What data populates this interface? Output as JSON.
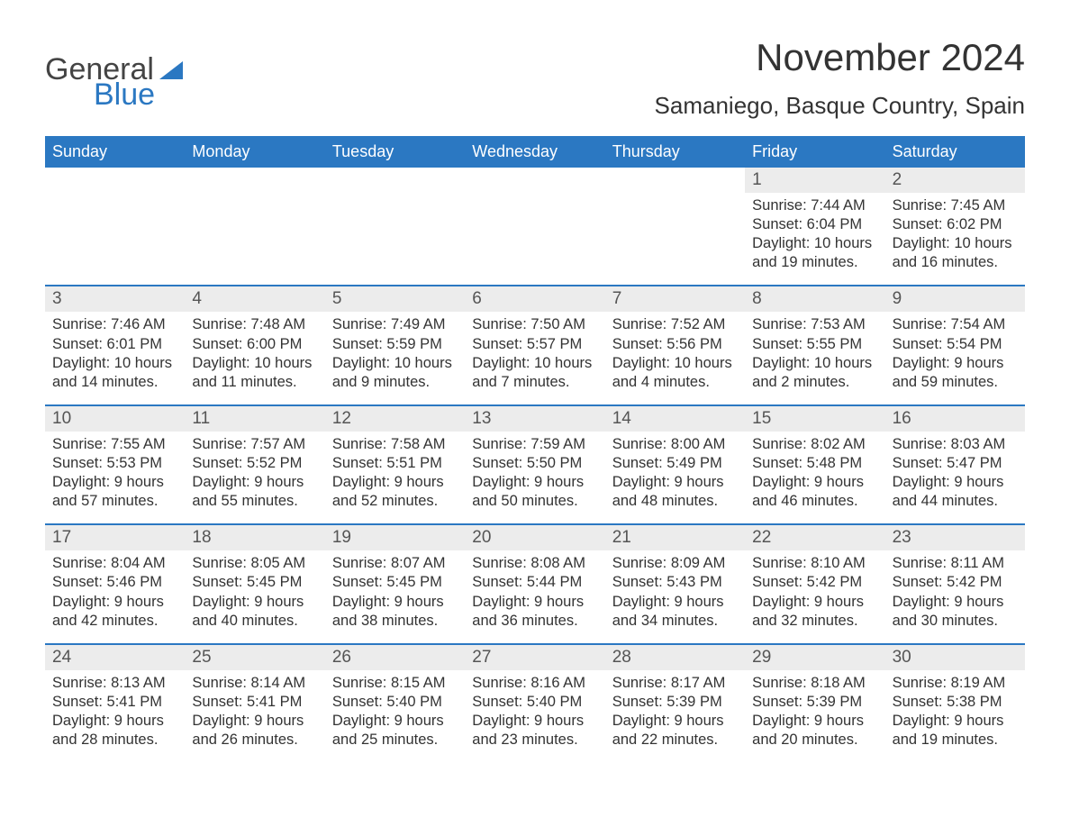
{
  "logo": {
    "word1": "General",
    "word2": "Blue"
  },
  "title": "November 2024",
  "location": "Samaniego, Basque Country, Spain",
  "colors": {
    "header_bg": "#2b78c2",
    "header_text": "#ffffff",
    "daybar_bg": "#ececec",
    "week_border": "#2b78c2",
    "body_text": "#333333",
    "page_bg": "#ffffff"
  },
  "day_labels": [
    "Sunday",
    "Monday",
    "Tuesday",
    "Wednesday",
    "Thursday",
    "Friday",
    "Saturday"
  ],
  "weeks": [
    [
      {
        "empty": true
      },
      {
        "empty": true
      },
      {
        "empty": true
      },
      {
        "empty": true
      },
      {
        "empty": true
      },
      {
        "num": "1",
        "sunrise": "Sunrise: 7:44 AM",
        "sunset": "Sunset: 6:04 PM",
        "day1": "Daylight: 10 hours",
        "day2": "and 19 minutes."
      },
      {
        "num": "2",
        "sunrise": "Sunrise: 7:45 AM",
        "sunset": "Sunset: 6:02 PM",
        "day1": "Daylight: 10 hours",
        "day2": "and 16 minutes."
      }
    ],
    [
      {
        "num": "3",
        "sunrise": "Sunrise: 7:46 AM",
        "sunset": "Sunset: 6:01 PM",
        "day1": "Daylight: 10 hours",
        "day2": "and 14 minutes."
      },
      {
        "num": "4",
        "sunrise": "Sunrise: 7:48 AM",
        "sunset": "Sunset: 6:00 PM",
        "day1": "Daylight: 10 hours",
        "day2": "and 11 minutes."
      },
      {
        "num": "5",
        "sunrise": "Sunrise: 7:49 AM",
        "sunset": "Sunset: 5:59 PM",
        "day1": "Daylight: 10 hours",
        "day2": "and 9 minutes."
      },
      {
        "num": "6",
        "sunrise": "Sunrise: 7:50 AM",
        "sunset": "Sunset: 5:57 PM",
        "day1": "Daylight: 10 hours",
        "day2": "and 7 minutes."
      },
      {
        "num": "7",
        "sunrise": "Sunrise: 7:52 AM",
        "sunset": "Sunset: 5:56 PM",
        "day1": "Daylight: 10 hours",
        "day2": "and 4 minutes."
      },
      {
        "num": "8",
        "sunrise": "Sunrise: 7:53 AM",
        "sunset": "Sunset: 5:55 PM",
        "day1": "Daylight: 10 hours",
        "day2": "and 2 minutes."
      },
      {
        "num": "9",
        "sunrise": "Sunrise: 7:54 AM",
        "sunset": "Sunset: 5:54 PM",
        "day1": "Daylight: 9 hours",
        "day2": "and 59 minutes."
      }
    ],
    [
      {
        "num": "10",
        "sunrise": "Sunrise: 7:55 AM",
        "sunset": "Sunset: 5:53 PM",
        "day1": "Daylight: 9 hours",
        "day2": "and 57 minutes."
      },
      {
        "num": "11",
        "sunrise": "Sunrise: 7:57 AM",
        "sunset": "Sunset: 5:52 PM",
        "day1": "Daylight: 9 hours",
        "day2": "and 55 minutes."
      },
      {
        "num": "12",
        "sunrise": "Sunrise: 7:58 AM",
        "sunset": "Sunset: 5:51 PM",
        "day1": "Daylight: 9 hours",
        "day2": "and 52 minutes."
      },
      {
        "num": "13",
        "sunrise": "Sunrise: 7:59 AM",
        "sunset": "Sunset: 5:50 PM",
        "day1": "Daylight: 9 hours",
        "day2": "and 50 minutes."
      },
      {
        "num": "14",
        "sunrise": "Sunrise: 8:00 AM",
        "sunset": "Sunset: 5:49 PM",
        "day1": "Daylight: 9 hours",
        "day2": "and 48 minutes."
      },
      {
        "num": "15",
        "sunrise": "Sunrise: 8:02 AM",
        "sunset": "Sunset: 5:48 PM",
        "day1": "Daylight: 9 hours",
        "day2": "and 46 minutes."
      },
      {
        "num": "16",
        "sunrise": "Sunrise: 8:03 AM",
        "sunset": "Sunset: 5:47 PM",
        "day1": "Daylight: 9 hours",
        "day2": "and 44 minutes."
      }
    ],
    [
      {
        "num": "17",
        "sunrise": "Sunrise: 8:04 AM",
        "sunset": "Sunset: 5:46 PM",
        "day1": "Daylight: 9 hours",
        "day2": "and 42 minutes."
      },
      {
        "num": "18",
        "sunrise": "Sunrise: 8:05 AM",
        "sunset": "Sunset: 5:45 PM",
        "day1": "Daylight: 9 hours",
        "day2": "and 40 minutes."
      },
      {
        "num": "19",
        "sunrise": "Sunrise: 8:07 AM",
        "sunset": "Sunset: 5:45 PM",
        "day1": "Daylight: 9 hours",
        "day2": "and 38 minutes."
      },
      {
        "num": "20",
        "sunrise": "Sunrise: 8:08 AM",
        "sunset": "Sunset: 5:44 PM",
        "day1": "Daylight: 9 hours",
        "day2": "and 36 minutes."
      },
      {
        "num": "21",
        "sunrise": "Sunrise: 8:09 AM",
        "sunset": "Sunset: 5:43 PM",
        "day1": "Daylight: 9 hours",
        "day2": "and 34 minutes."
      },
      {
        "num": "22",
        "sunrise": "Sunrise: 8:10 AM",
        "sunset": "Sunset: 5:42 PM",
        "day1": "Daylight: 9 hours",
        "day2": "and 32 minutes."
      },
      {
        "num": "23",
        "sunrise": "Sunrise: 8:11 AM",
        "sunset": "Sunset: 5:42 PM",
        "day1": "Daylight: 9 hours",
        "day2": "and 30 minutes."
      }
    ],
    [
      {
        "num": "24",
        "sunrise": "Sunrise: 8:13 AM",
        "sunset": "Sunset: 5:41 PM",
        "day1": "Daylight: 9 hours",
        "day2": "and 28 minutes."
      },
      {
        "num": "25",
        "sunrise": "Sunrise: 8:14 AM",
        "sunset": "Sunset: 5:41 PM",
        "day1": "Daylight: 9 hours",
        "day2": "and 26 minutes."
      },
      {
        "num": "26",
        "sunrise": "Sunrise: 8:15 AM",
        "sunset": "Sunset: 5:40 PM",
        "day1": "Daylight: 9 hours",
        "day2": "and 25 minutes."
      },
      {
        "num": "27",
        "sunrise": "Sunrise: 8:16 AM",
        "sunset": "Sunset: 5:40 PM",
        "day1": "Daylight: 9 hours",
        "day2": "and 23 minutes."
      },
      {
        "num": "28",
        "sunrise": "Sunrise: 8:17 AM",
        "sunset": "Sunset: 5:39 PM",
        "day1": "Daylight: 9 hours",
        "day2": "and 22 minutes."
      },
      {
        "num": "29",
        "sunrise": "Sunrise: 8:18 AM",
        "sunset": "Sunset: 5:39 PM",
        "day1": "Daylight: 9 hours",
        "day2": "and 20 minutes."
      },
      {
        "num": "30",
        "sunrise": "Sunrise: 8:19 AM",
        "sunset": "Sunset: 5:38 PM",
        "day1": "Daylight: 9 hours",
        "day2": "and 19 minutes."
      }
    ]
  ]
}
